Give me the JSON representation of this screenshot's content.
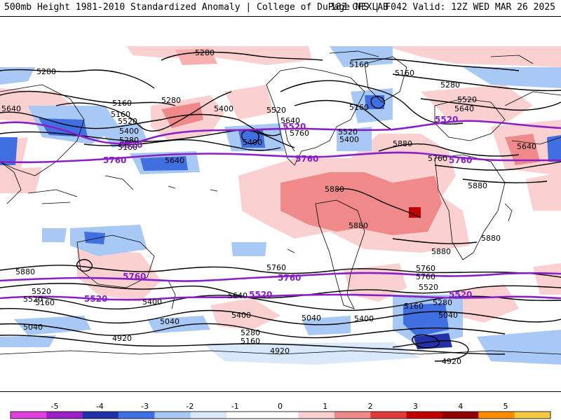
{
  "header": {
    "left": "500mb Height 1981-2010 Standardized Anomaly | College of DuPage NEXLAB",
    "right": "18Z GFS | F042 Valid: 12Z WED MAR 26 2025"
  },
  "colorbar": {
    "ticks": [
      "-5",
      "-4",
      "-3",
      "-2",
      "-1",
      "0",
      "1",
      "2",
      "3",
      "4",
      "5"
    ],
    "colors": [
      "#e040e0",
      "#9b1fc6",
      "#2231a8",
      "#3f6fe0",
      "#a8c8f5",
      "#d9e8fb",
      "#ffffff",
      "#ffffff",
      "#fbd0d0",
      "#f08a8a",
      "#e03a3a",
      "#c00000",
      "#900000",
      "#ff8c00",
      "#f5c842"
    ]
  },
  "contour_labels": {
    "black": [
      "5280",
      "5280",
      "5160",
      "5160",
      "5280",
      "5160",
      "5280",
      "5160",
      "5640",
      "5400",
      "5520",
      "5400",
      "5280",
      "5160",
      "5520",
      "5640",
      "5760",
      "5400",
      "5520",
      "5640",
      "5400",
      "5640",
      "5160",
      "5520",
      "5880",
      "5640",
      "5760",
      "5880",
      "5880",
      "5880",
      "5880",
      "5880",
      "5880",
      "5760",
      "5760",
      "5760",
      "5640",
      "5520",
      "5400",
      "5520",
      "5400",
      "5160",
      "5040",
      "5280",
      "5160",
      "5040",
      "4920",
      "5400",
      "5520",
      "5280",
      "5040",
      "5160",
      "4920",
      "4920",
      "5040"
    ],
    "purple": [
      "5520",
      "5520",
      "5520",
      "5760",
      "5760",
      "5760",
      "5760",
      "5760",
      "5520",
      "5520",
      "5520"
    ]
  },
  "palette": {
    "purple_contour": "#8a1fc6",
    "black_contour": "#000000",
    "coast": "#000000"
  }
}
